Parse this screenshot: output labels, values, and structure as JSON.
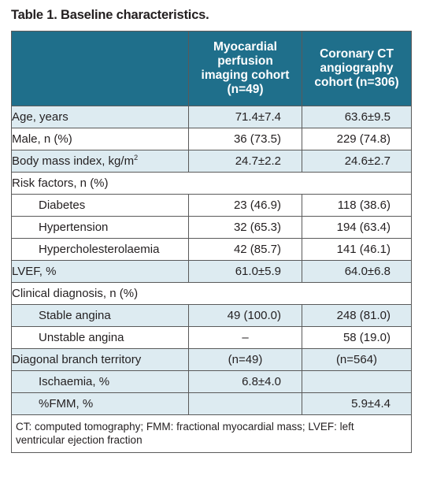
{
  "caption": "Table 1. Baseline characteristics.",
  "header": {
    "col1": "",
    "col2_line1": "Myocardial",
    "col2_line2": "perfusion",
    "col2_line3": "imaging cohort",
    "col2_line4": "(n=49)",
    "col3_line1": "Coronary CT",
    "col3_line2": "angiography",
    "col3_line3": "cohort (n=306)"
  },
  "rows": [
    {
      "label": "Age, years",
      "mpi": "71.4±7.4",
      "ccta": "63.6±9.5"
    },
    {
      "label": "Male, n (%)",
      "mpi": "36 (73.5)",
      "ccta": "229 (74.8)"
    },
    {
      "label": "Body mass index, kg/m",
      "label_sup": "2",
      "mpi": "24.7±2.2",
      "ccta": "24.6±2.7"
    },
    {
      "label": "Risk factors, n (%)",
      "mpi": "",
      "ccta": ""
    },
    {
      "label": "Diabetes",
      "mpi": "23 (46.9)",
      "ccta": "118 (38.6)"
    },
    {
      "label": "Hypertension",
      "mpi": "32 (65.3)",
      "ccta": "194 (63.4)"
    },
    {
      "label": "Hypercholesterolaemia",
      "mpi": "42 (85.7)",
      "ccta": "141 (46.1)"
    },
    {
      "label": "LVEF, %",
      "mpi": "61.0±5.9",
      "ccta": "64.0±6.8"
    },
    {
      "label": "Clinical diagnosis, n (%)",
      "mpi": "",
      "ccta": ""
    },
    {
      "label": "Stable angina",
      "mpi": "49 (100.0)",
      "ccta": "248 (81.0)"
    },
    {
      "label": "Unstable angina",
      "mpi": "–",
      "ccta": "58 (19.0)"
    },
    {
      "label": "Diagonal branch territory",
      "mpi": "(n=49)",
      "ccta": "(n=564)"
    },
    {
      "label": "Ischaemia, %",
      "mpi": "6.8±4.0",
      "ccta": ""
    },
    {
      "label": "%FMM, %",
      "mpi": "",
      "ccta": "5.9±4.4"
    }
  ],
  "footnote_line1": "CT: computed tomography; FMM: fractional myocardial mass; LVEF: left",
  "footnote_line2": "ventricular ejection fraction"
}
